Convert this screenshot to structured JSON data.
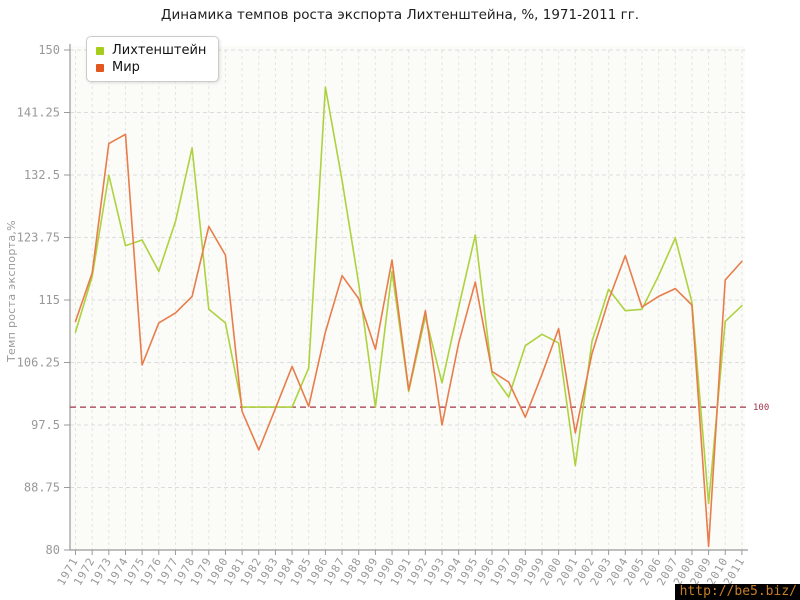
{
  "title": "Динамика темпов роста экспорта Лихтенштейна, %, 1971-2011 гг.",
  "y_axis_label": "Темп роста экспорта,%",
  "legend": {
    "items": [
      {
        "label": "Лихтенштейн",
        "color": "#a4cd1c"
      },
      {
        "label": "Мир",
        "color": "#e2571e"
      }
    ]
  },
  "reference_line": {
    "value": 100,
    "label": "100",
    "color": "#a23548"
  },
  "watermark": "http://be5.biz/",
  "colors": {
    "liechtenstein_line": "#aed23f",
    "world_line": "#e87d4b",
    "grid": "#dcdcdc",
    "axis": "#999999",
    "tick_text": "#999999",
    "plot_bg": "#fbfbf8"
  },
  "chart_data": {
    "type": "line",
    "title": "Динамика темпов роста экспорта Лихтенштейна, %, 1971-2011 гг.",
    "xlabel": "",
    "ylabel": "Темп роста экспорта,%",
    "ylim": [
      80,
      150
    ],
    "yticks": [
      80,
      88.75,
      97.5,
      106.25,
      115,
      123.75,
      132.5,
      141.25,
      150
    ],
    "grid": true,
    "legend_position": "top-left",
    "reference_value": 100,
    "x": [
      1971,
      1972,
      1973,
      1974,
      1975,
      1976,
      1977,
      1978,
      1979,
      1980,
      1981,
      1982,
      1983,
      1984,
      1985,
      1986,
      1987,
      1988,
      1989,
      1990,
      1991,
      1992,
      1993,
      1994,
      1995,
      1996,
      1997,
      1998,
      1999,
      2000,
      2001,
      2002,
      2003,
      2004,
      2005,
      2006,
      2007,
      2008,
      2009,
      2010,
      2011
    ],
    "series": [
      {
        "name": "Лихтенштейн",
        "color": "#aed23f",
        "values": [
          110.5,
          118.3,
          132.5,
          122.6,
          123.4,
          119.0,
          126.0,
          136.3,
          113.7,
          111.8,
          100.0,
          100.0,
          100.0,
          100.0,
          105.5,
          144.8,
          131.7,
          117.3,
          100.0,
          119.0,
          102.2,
          112.7,
          103.4,
          114.0,
          124.1,
          104.7,
          101.4,
          108.6,
          110.2,
          109.0,
          91.8,
          109.2,
          116.5,
          113.5,
          113.7,
          118.4,
          123.7,
          114.7,
          86.5,
          112.0,
          114.2
        ]
      },
      {
        "name": "Мир",
        "color": "#e87d4b",
        "values": [
          112.0,
          118.8,
          136.9,
          138.2,
          105.9,
          111.8,
          113.2,
          115.5,
          125.3,
          121.3,
          99.4,
          94.0,
          99.8,
          105.7,
          100.1,
          110.5,
          118.4,
          115.2,
          108.1,
          120.6,
          102.4,
          113.5,
          97.5,
          109.0,
          117.5,
          105.0,
          103.5,
          98.6,
          104.6,
          111.0,
          96.4,
          107.5,
          115.0,
          121.2,
          114.0,
          115.5,
          116.6,
          114.3,
          80.5,
          117.8,
          120.4
        ]
      }
    ]
  }
}
